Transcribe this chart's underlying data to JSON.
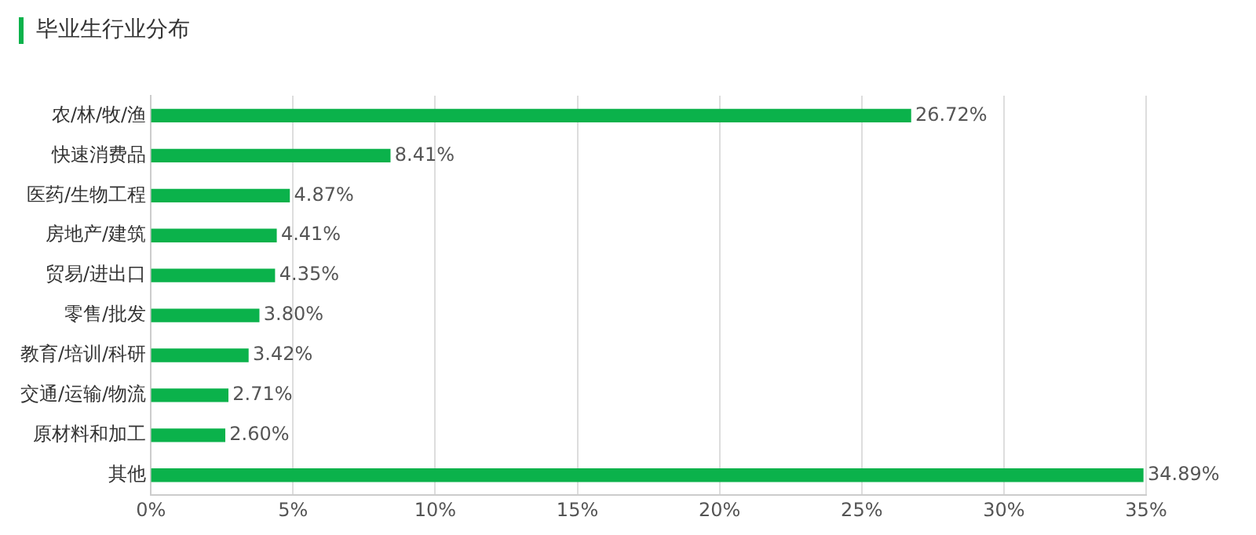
{
  "chart_data": {
    "type": "bar",
    "orientation": "horizontal",
    "title": "毕业生行业分布",
    "categories": [
      "农/林/牧/渔",
      "快速消费品",
      "医药/生物工程",
      "房地产/建筑",
      "贸易/进出口",
      "零售/批发",
      "教育/培训/科研",
      "交通/运输/物流",
      "原材料和加工",
      "其他"
    ],
    "values": [
      26.72,
      8.41,
      4.87,
      4.41,
      4.35,
      3.8,
      3.42,
      2.71,
      2.6,
      34.89
    ],
    "value_labels": [
      "26.72%",
      "8.41%",
      "4.87%",
      "4.41%",
      "4.35%",
      "3.80%",
      "3.42%",
      "2.71%",
      "2.60%",
      "34.89%"
    ],
    "color": "#0bb24b",
    "xlim": [
      0,
      35
    ],
    "xticks": [
      {
        "value": 0,
        "label": "0%"
      },
      {
        "value": 5,
        "label": "5%"
      },
      {
        "value": 10,
        "label": "10%"
      },
      {
        "value": 15,
        "label": "15%"
      },
      {
        "value": 20,
        "label": "20%"
      },
      {
        "value": 25,
        "label": "25%"
      },
      {
        "value": 30,
        "label": "30%"
      },
      {
        "value": 35,
        "label": "35%"
      }
    ],
    "grid": "x",
    "legend": false
  }
}
